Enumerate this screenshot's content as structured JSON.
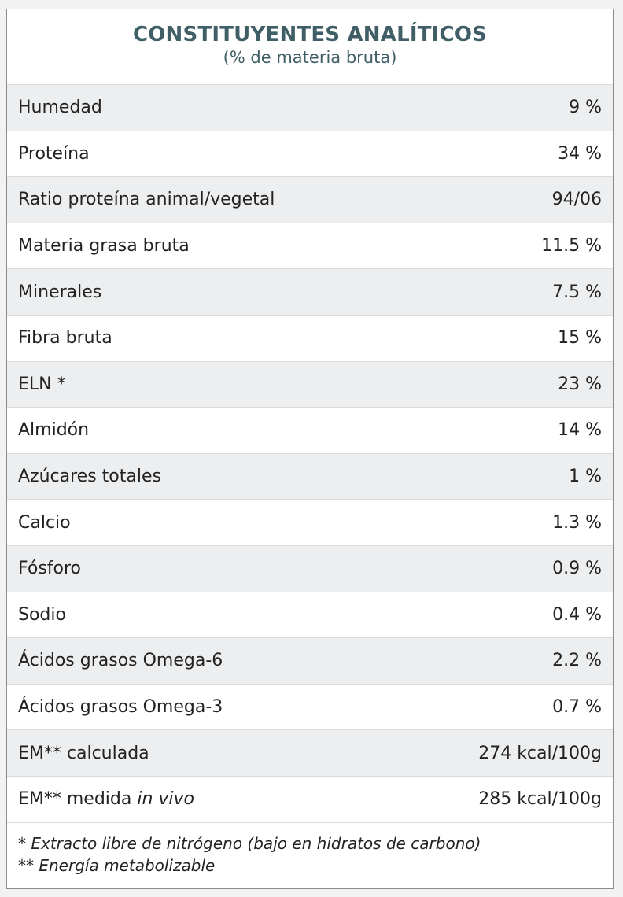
{
  "header": {
    "title": "CONSTITUYENTES ANALÍTICOS",
    "subtitle": "(% de materia bruta)"
  },
  "rows": [
    {
      "label": "Humedad",
      "value": "9 %"
    },
    {
      "label": "Proteína",
      "value": "34 %"
    },
    {
      "label": "Ratio proteína animal/vegetal",
      "value": "94/06"
    },
    {
      "label": "Materia grasa bruta",
      "value": "11.5 %"
    },
    {
      "label": "Minerales",
      "value": "7.5 %"
    },
    {
      "label": "Fibra bruta",
      "value": "15 %"
    },
    {
      "label": "ELN *",
      "value": "23 %"
    },
    {
      "label": "Almidón",
      "value": "14 %"
    },
    {
      "label": "Azúcares totales",
      "value": "1 %"
    },
    {
      "label": "Calcio",
      "value": "1.3 %"
    },
    {
      "label": "Fósforo",
      "value": "0.9 %"
    },
    {
      "label": "Sodio",
      "value": "0.4 %"
    },
    {
      "label": "Ácidos grasos Omega-6",
      "value": "2.2 %"
    },
    {
      "label": "Ácidos grasos Omega-3",
      "value": "0.7 %"
    },
    {
      "label": "EM** calculada",
      "value": "274 kcal/100g"
    },
    {
      "label_prefix": "EM** medida ",
      "label_italic": "in vivo",
      "value": "285 kcal/100g"
    }
  ],
  "footnotes": [
    "* Extracto libre de nitrógeno (bajo en hidratos de carbono)",
    "** Energía metabolizable"
  ]
}
